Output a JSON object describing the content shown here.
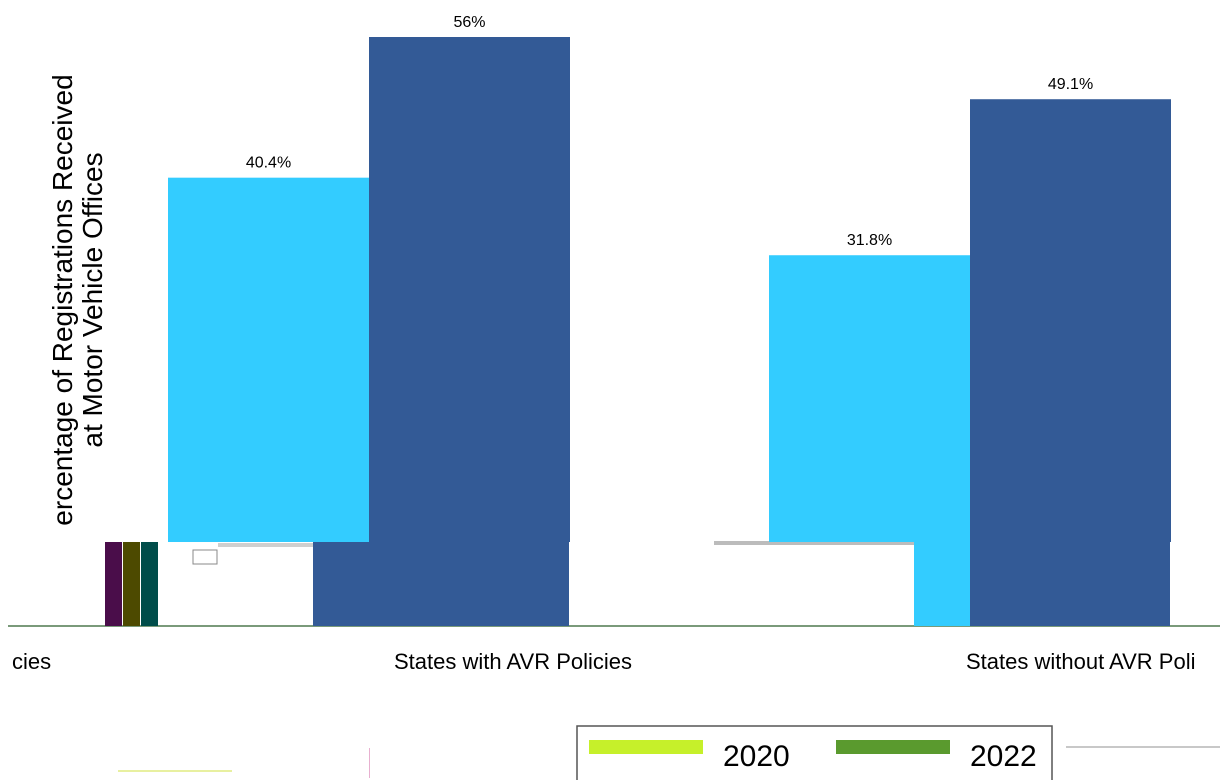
{
  "chart_data": {
    "type": "bar",
    "categories": [
      "cies",
      "States with AVR Policies",
      "States without AVR Poli"
    ],
    "ylabel_lines": [
      "ercentage of Registrations Received",
      "at Motor Vehicle Offices"
    ],
    "series": [
      {
        "color": "#33ccff",
        "values": [
          null,
          40.4,
          31.8
        ]
      },
      {
        "color": "#335a96",
        "values": [
          null,
          56,
          49.1
        ]
      }
    ],
    "data_labels": [
      [
        null,
        "40.4%",
        "31.8%"
      ],
      [
        null,
        "56%",
        "49.1%"
      ]
    ],
    "ylim": [
      0,
      56
    ],
    "grid": false,
    "legend_labels": [
      "2020",
      "2022"
    ],
    "legend_colors": [
      "#c6f02a",
      "#5a9a2e"
    ],
    "background_bar_colors": [
      "#4a0d4a",
      "#4d4a00",
      "#004d4a"
    ]
  }
}
